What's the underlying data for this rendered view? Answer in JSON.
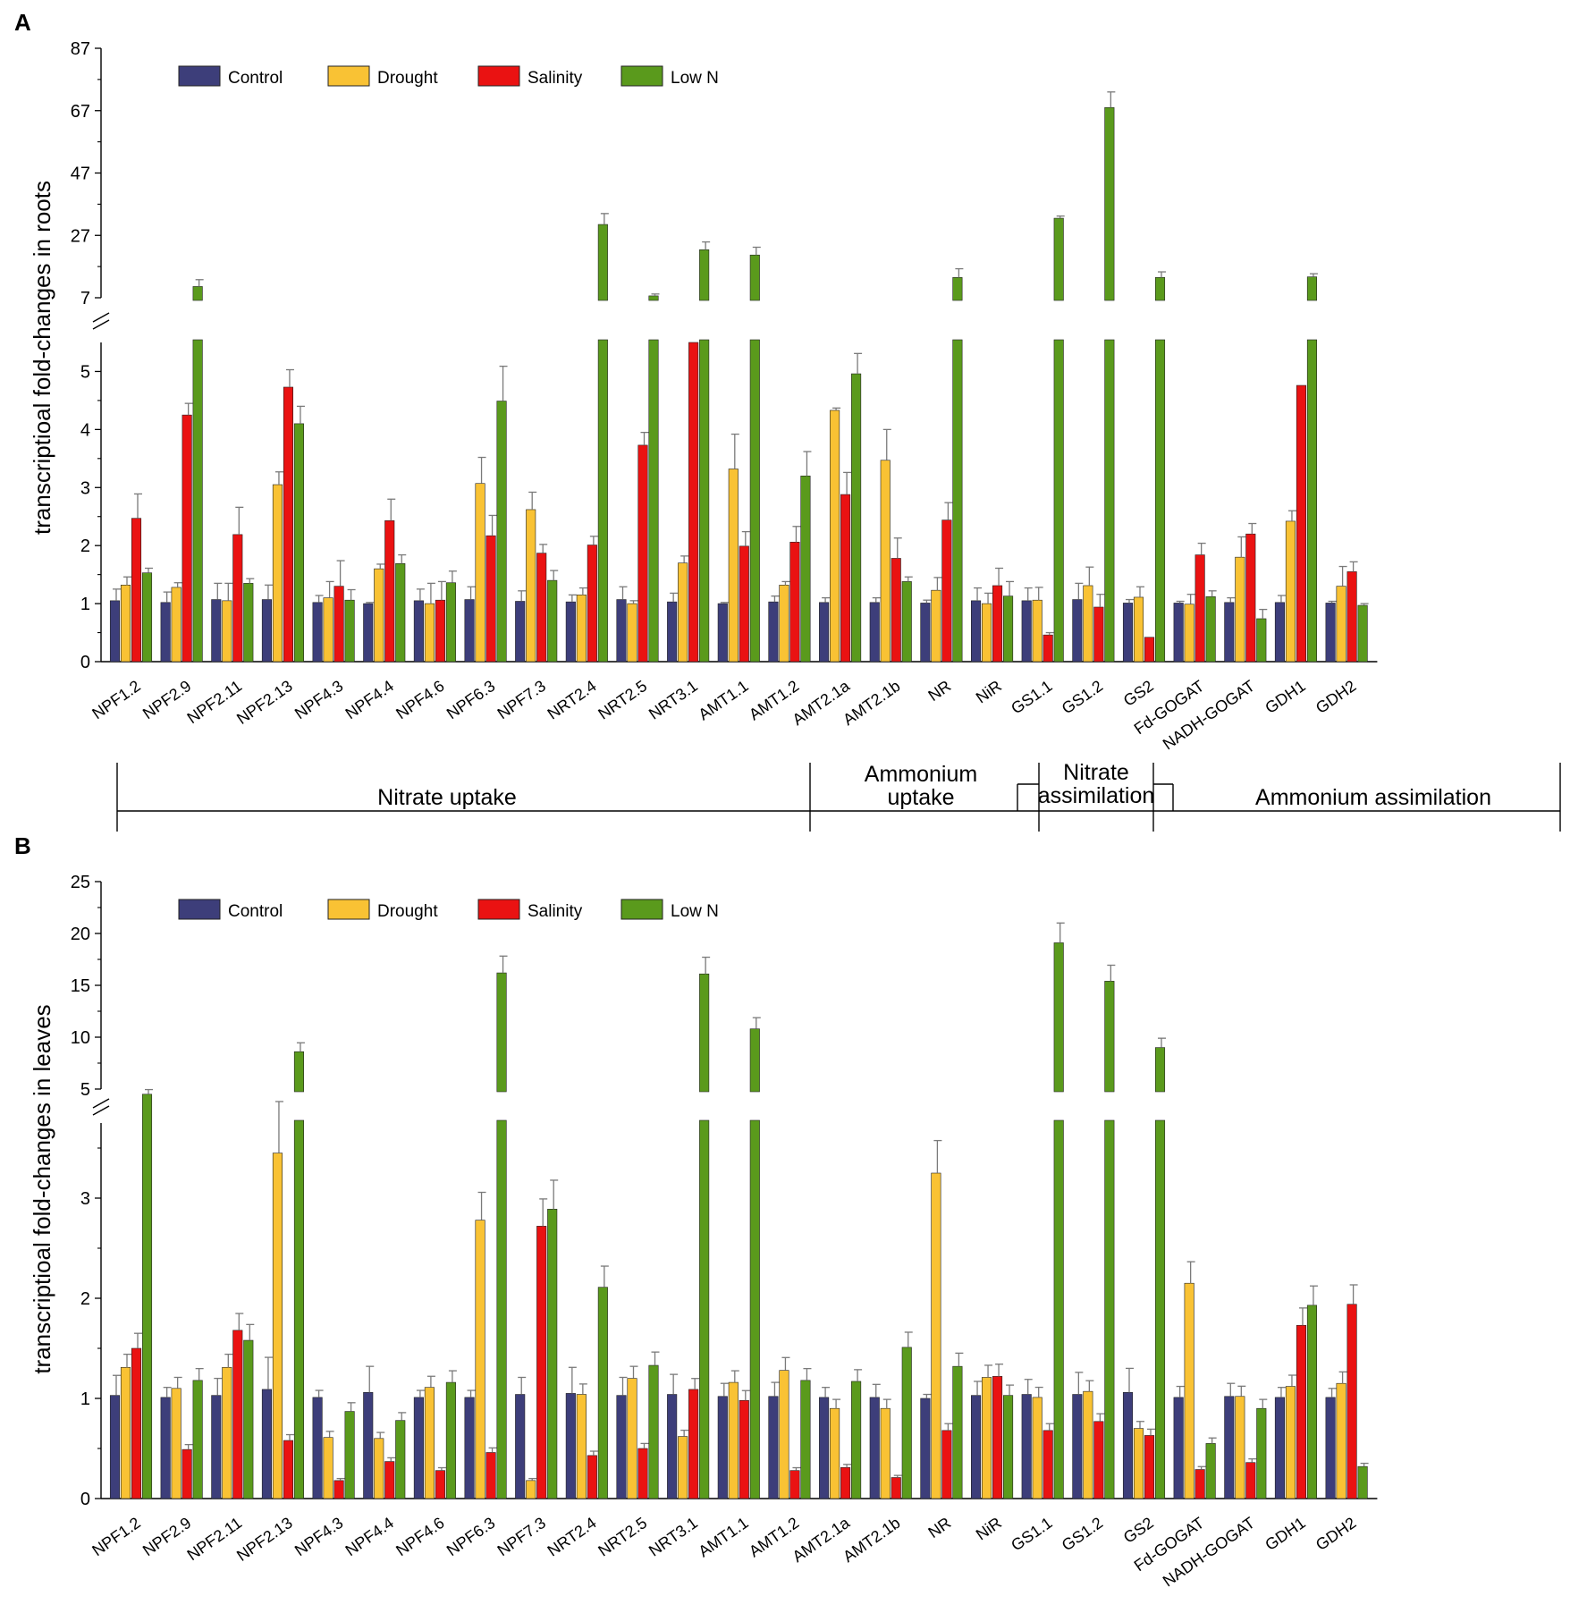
{
  "chart_data": [
    {
      "type": "bar",
      "panel_label": "A",
      "ylabel": "transcriptioal fold-changes in roots",
      "y_ticks_lower": [
        0,
        1,
        2,
        3,
        4,
        5
      ],
      "y_ticks_upper": [
        7,
        27,
        47,
        67,
        87
      ],
      "ylim": [
        0,
        87
      ],
      "axis_break": [
        5.5,
        7
      ],
      "categories": [
        "NPF1.2",
        "NPF2.9",
        "NPF2.11",
        "NPF2.13",
        "NPF4.3",
        "NPF4.4",
        "NPF4.6",
        "NPF6.3",
        "NPF7.3",
        "NRT2.4",
        "NRT2.5",
        "NRT3.1",
        "AMT1.1",
        "AMT1.2",
        "AMT2.1a",
        "AMT2.1b",
        "NR",
        "NiR",
        "GS1.1",
        "GS1.2",
        "GS2",
        "Fd-GOGAT",
        "NADH-GOGAT",
        "GDH1",
        "GDH2"
      ],
      "series": [
        {
          "name": "Control",
          "color": "#3d3e7a",
          "values": [
            1.05,
            1.02,
            1.07,
            1.07,
            1.02,
            1.0,
            1.05,
            1.07,
            1.04,
            1.03,
            1.07,
            1.03,
            1.0,
            1.03,
            1.02,
            1.02,
            1.01,
            1.05,
            1.05,
            1.07,
            1.01,
            1.01,
            1.02,
            1.02,
            1.01
          ],
          "errors": [
            0.2,
            0.18,
            0.28,
            0.25,
            0.12,
            0.02,
            0.2,
            0.22,
            0.18,
            0.12,
            0.22,
            0.15,
            0.02,
            0.1,
            0.08,
            0.08,
            0.05,
            0.22,
            0.22,
            0.28,
            0.06,
            0.03,
            0.08,
            0.12,
            0.03
          ]
        },
        {
          "name": "Drought",
          "color": "#f9c234",
          "values": [
            1.32,
            1.28,
            1.05,
            3.05,
            1.1,
            1.6,
            1.0,
            3.07,
            2.62,
            1.15,
            1.0,
            1.7,
            3.32,
            1.32,
            4.33,
            3.47,
            1.23,
            1.0,
            1.06,
            1.31,
            1.11,
            0.99,
            1.8,
            2.42,
            1.3
          ],
          "errors": [
            0.14,
            0.08,
            0.3,
            0.22,
            0.28,
            0.08,
            0.35,
            0.45,
            0.3,
            0.12,
            0.05,
            0.12,
            0.6,
            0.06,
            0.04,
            0.53,
            0.22,
            0.18,
            0.22,
            0.32,
            0.18,
            0.17,
            0.35,
            0.18,
            0.34
          ]
        },
        {
          "name": "Salinity",
          "color": "#ea1212",
          "values": [
            2.47,
            4.25,
            2.19,
            4.73,
            1.3,
            2.43,
            1.06,
            2.17,
            1.87,
            2.01,
            3.73,
            5.5,
            1.99,
            2.06,
            2.88,
            1.78,
            2.44,
            1.31,
            0.46,
            0.94,
            0.42,
            1.84,
            2.2,
            4.76,
            1.55
          ],
          "errors": [
            0.42,
            0.2,
            0.47,
            0.3,
            0.44,
            0.37,
            0.32,
            0.35,
            0.15,
            0.15,
            0.22,
            0,
            0.25,
            0.27,
            0.38,
            0.35,
            0.3,
            0.3,
            0.04,
            0.22,
            0,
            0.2,
            0.18,
            0,
            0.17
          ]
        },
        {
          "name": "Low N",
          "color": "#5a9a1c",
          "values": [
            1.53,
            10.6,
            1.35,
            4.1,
            1.06,
            1.69,
            1.36,
            4.49,
            1.4,
            30.5,
            7.6,
            22.4,
            20.7,
            3.2,
            4.96,
            1.38,
            13.5,
            1.13,
            32.5,
            68.0,
            13.5,
            1.12,
            0.74,
            13.7,
            0.97
          ],
          "errors": [
            0.08,
            2.2,
            0.08,
            0.3,
            0.18,
            0.15,
            0.2,
            0.6,
            0.17,
            3.5,
            0.6,
            2.5,
            2.5,
            0.42,
            0.35,
            0.08,
            2.8,
            0.25,
            0.7,
            5.0,
            1.8,
            0.1,
            0.16,
            1.0,
            0.03
          ]
        }
      ]
    },
    {
      "type": "bar",
      "panel_label": "B",
      "ylabel": "transcriptioal fold-changes in leaves",
      "y_ticks_lower": [
        0,
        1,
        2,
        3
      ],
      "y_ticks_upper": [
        5,
        10,
        15,
        20,
        25
      ],
      "ylim": [
        0,
        25
      ],
      "axis_break": [
        3.75,
        5
      ],
      "categories": [
        "NPF1.2",
        "NPF2.9",
        "NPF2.11",
        "NPF2.13",
        "NPF4.3",
        "NPF4.4",
        "NPF4.6",
        "NPF6.3",
        "NPF7.3",
        "NRT2.4",
        "NRT2.5",
        "NRT3.1",
        "AMT1.1",
        "AMT1.2",
        "AMT2.1a",
        "AMT2.1b",
        "NR",
        "NiR",
        "GS1.1",
        "GS1.2",
        "GS2",
        "Fd-GOGAT",
        "NADH-GOGAT",
        "GDH1",
        "GDH2"
      ],
      "series": [
        {
          "name": "Control",
          "color": "#3d3e7a",
          "values": [
            1.03,
            1.01,
            1.03,
            1.09,
            1.01,
            1.06,
            1.01,
            1.01,
            1.04,
            1.05,
            1.03,
            1.04,
            1.02,
            1.02,
            1.01,
            1.01,
            1.0,
            1.03,
            1.04,
            1.04,
            1.06,
            1.01,
            1.02,
            1.01,
            1.01
          ],
          "errors": [
            0.2,
            0.1,
            0.17,
            0.32,
            0.07,
            0.26,
            0.07,
            0.07,
            0.17,
            0.26,
            0.18,
            0.2,
            0.13,
            0.14,
            0.1,
            0.13,
            0.04,
            0.14,
            0.15,
            0.22,
            0.24,
            0.11,
            0.13,
            0.1,
            0.09
          ]
        },
        {
          "name": "Drought",
          "color": "#f9c234",
          "values": [
            1.31,
            1.1,
            1.31,
            3.45,
            0.61,
            0.6,
            1.11,
            2.78,
            0.18,
            1.04,
            1.2,
            0.62,
            1.16,
            1.28,
            0.9,
            0.9,
            3.25,
            1.21,
            1.01,
            1.07,
            0.7,
            2.15,
            1.02,
            1.12,
            1.15
          ]
        },
        {
          "name": "Salinity",
          "color": "#ea1212",
          "values": [
            1.5,
            0.49,
            1.68,
            0.58,
            0.18,
            0.37,
            0.28,
            0.46,
            2.72,
            0.43,
            0.5,
            1.09,
            0.98,
            0.28,
            0.31,
            0.21,
            0.68,
            1.22,
            0.68,
            0.77,
            0.63,
            0.29,
            0.36,
            1.73,
            1.94
          ]
        },
        {
          "name": "Low N",
          "color": "#5a9a1c",
          "values": [
            4.5,
            1.18,
            1.58,
            8.6,
            0.87,
            0.78,
            1.16,
            16.2,
            2.89,
            2.11,
            1.33,
            16.1,
            10.8,
            1.18,
            1.17,
            1.51,
            1.32,
            1.03,
            19.1,
            15.4,
            9.0,
            0.55,
            0.9,
            1.93,
            0.32
          ]
        }
      ]
    }
  ],
  "legend": [
    "Control",
    "Drought",
    "Salinity",
    "Low N"
  ],
  "groups": [
    {
      "label_lines": [
        "Nitrate uptake"
      ]
    },
    {
      "label_lines": [
        "Ammonium",
        "uptake"
      ]
    },
    {
      "label_lines": [
        "Nitrate",
        "assimilation"
      ]
    },
    {
      "label_lines": [
        "Ammonium assimilation"
      ]
    }
  ]
}
